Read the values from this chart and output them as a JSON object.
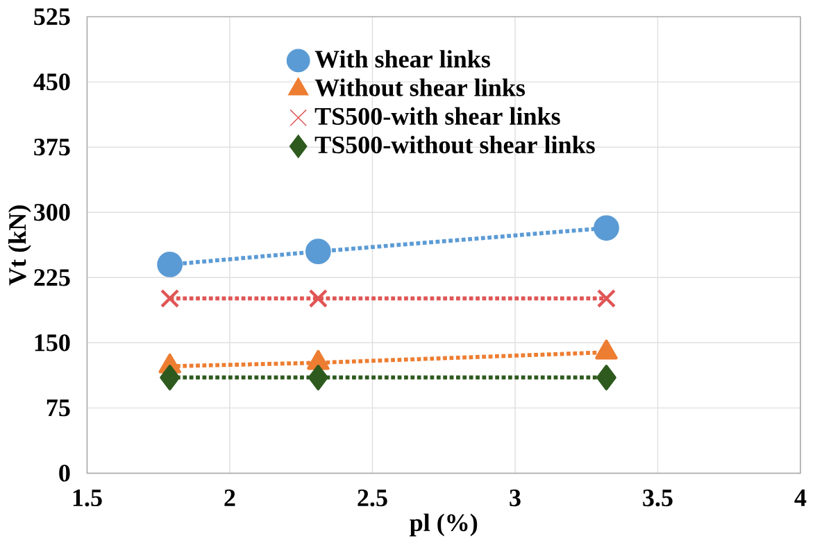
{
  "chart_data": {
    "type": "line",
    "xlabel": "pl (%)",
    "ylabel": "Vt (kN)",
    "x": [
      1.79,
      2.31,
      3.32
    ],
    "xlim": [
      1.5,
      4
    ],
    "xticks": [
      1.5,
      2,
      2.5,
      3,
      3.5,
      4
    ],
    "ylim": [
      0,
      525
    ],
    "yticks": [
      0,
      75,
      150,
      225,
      300,
      375,
      450,
      525
    ],
    "grid": true,
    "legend": "top",
    "line_style": "dotted",
    "series": [
      {
        "name": "With shear links",
        "color": "#5b9bd5",
        "marker": "circle",
        "values": [
          240,
          255,
          282
        ]
      },
      {
        "name": "Without shear links",
        "color": "#ed7d31",
        "marker": "triangle",
        "values": [
          123,
          127,
          139
        ]
      },
      {
        "name": "TS500-with shear links",
        "color": "#e05555",
        "marker": "cross",
        "values": [
          201,
          201,
          201
        ]
      },
      {
        "name": "TS500-without shear links",
        "color": "#2e5a1e",
        "marker": "diamond",
        "values": [
          110,
          110,
          110
        ]
      }
    ]
  }
}
